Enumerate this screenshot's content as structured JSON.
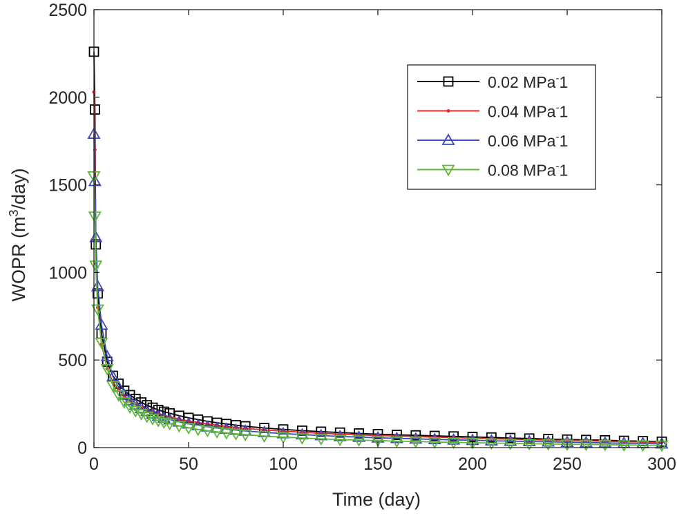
{
  "chart_data": {
    "type": "line",
    "title": "",
    "xlabel": "Time (day)",
    "ylabel_parts": {
      "before": "WOPR (m",
      "sup": "3",
      "after": "/day)"
    },
    "xlim": [
      0,
      300
    ],
    "ylim": [
      0,
      2500
    ],
    "x_ticks": [
      0,
      50,
      100,
      150,
      200,
      250,
      300
    ],
    "y_ticks": [
      0,
      500,
      1000,
      1500,
      2000,
      2500
    ],
    "x_tick_labels": [
      "0",
      "50",
      "100",
      "150",
      "200",
      "250",
      "300"
    ],
    "y_tick_labels": [
      "0",
      "500",
      "1000",
      "1500",
      "2000",
      "2500"
    ],
    "grid": false,
    "legend_position": "top-right",
    "series": [
      {
        "name": "0.02 MPa",
        "name_sup": "-",
        "name_after": "1",
        "color": "#000000",
        "marker": "square",
        "x": [
          0,
          0.5,
          1,
          2,
          4,
          7,
          10,
          13,
          16,
          19,
          22,
          25,
          28,
          31,
          34,
          37,
          40,
          45,
          50,
          55,
          60,
          65,
          70,
          75,
          80,
          90,
          100,
          110,
          120,
          130,
          140,
          150,
          160,
          170,
          180,
          190,
          200,
          210,
          220,
          230,
          240,
          250,
          260,
          270,
          280,
          290,
          300
        ],
        "values": [
          2260,
          1930,
          1160,
          880,
          650,
          490,
          410,
          365,
          325,
          300,
          278,
          258,
          242,
          228,
          215,
          205,
          196,
          182,
          170,
          160,
          150,
          142,
          135,
          128,
          122,
          112,
          104,
          97,
          91,
          86,
          81,
          77,
          73,
          70,
          67,
          64,
          61,
          58,
          55,
          52,
          49,
          46,
          44,
          42,
          39,
          37,
          34
        ]
      },
      {
        "name": "0.04 MPa",
        "name_sup": "-",
        "name_after": "1",
        "color": "#e8272a",
        "marker": "dot",
        "x": [
          0,
          0.5,
          1,
          2,
          4,
          7,
          10,
          13,
          16,
          19,
          22,
          25,
          28,
          31,
          34,
          37,
          40,
          45,
          50,
          55,
          60,
          65,
          70,
          75,
          80,
          90,
          100,
          110,
          120,
          130,
          140,
          150,
          160,
          170,
          180,
          190,
          200,
          210,
          220,
          230,
          240,
          250,
          260,
          270,
          280,
          290,
          300
        ],
        "values": [
          2030,
          1700,
          1050,
          800,
          590,
          450,
          375,
          330,
          295,
          270,
          250,
          232,
          218,
          205,
          194,
          184,
          176,
          163,
          152,
          143,
          135,
          128,
          121,
          115,
          110,
          101,
          94,
          88,
          82,
          77,
          73,
          69,
          66,
          63,
          60,
          57,
          54,
          51,
          48,
          46,
          43,
          41,
          39,
          36,
          34,
          32,
          30
        ]
      },
      {
        "name": "0.06 MPa",
        "name_sup": "-",
        "name_after": "1",
        "color": "#3f47b8",
        "marker": "triangle-up",
        "x": [
          0,
          0.5,
          1,
          2,
          4,
          7,
          10,
          13,
          16,
          19,
          22,
          25,
          28,
          31,
          34,
          37,
          40,
          45,
          50,
          55,
          60,
          65,
          70,
          75,
          80,
          90,
          100,
          110,
          120,
          130,
          140,
          150,
          160,
          170,
          180,
          190,
          200,
          210,
          220,
          230,
          240,
          250,
          260,
          270,
          280,
          290,
          300
        ],
        "values": [
          1790,
          1520,
          1200,
          920,
          700,
          520,
          405,
          345,
          300,
          268,
          244,
          224,
          207,
          193,
          180,
          169,
          160,
          147,
          136,
          127,
          119,
          112,
          106,
          100,
          95,
          87,
          80,
          74,
          69,
          64,
          60,
          56,
          53,
          50,
          47,
          44,
          42,
          39,
          37,
          35,
          33,
          31,
          29,
          27,
          25,
          24,
          22
        ]
      },
      {
        "name": "0.08 MPa",
        "name_sup": "-",
        "name_after": "1",
        "color": "#5cb836",
        "marker": "triangle-down",
        "x": [
          0,
          0.5,
          1,
          2,
          4,
          7,
          10,
          13,
          16,
          19,
          22,
          25,
          28,
          31,
          34,
          37,
          40,
          45,
          50,
          55,
          60,
          65,
          70,
          75,
          80,
          90,
          100,
          110,
          120,
          130,
          140,
          150,
          160,
          170,
          180,
          190,
          200,
          210,
          220,
          230,
          240,
          250,
          260,
          270,
          280,
          290,
          300
        ],
        "values": [
          1550,
          1320,
          1040,
          790,
          600,
          450,
          355,
          300,
          260,
          232,
          210,
          193,
          178,
          165,
          154,
          145,
          137,
          124,
          113,
          104,
          97,
          90,
          84,
          79,
          74,
          66,
          60,
          55,
          50,
          46,
          43,
          40,
          37,
          35,
          32,
          30,
          28,
          26,
          24,
          22,
          21,
          19,
          18,
          17,
          15,
          14,
          13
        ]
      }
    ]
  }
}
